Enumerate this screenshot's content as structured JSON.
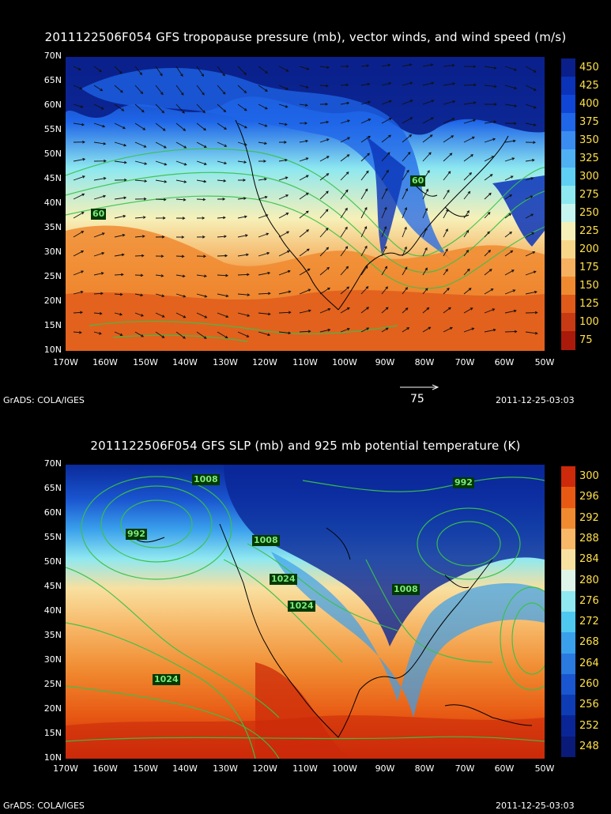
{
  "panel1": {
    "title": "2011122506F054 GFS tropopause pressure (mb), vector winds, and wind speed (m/s)",
    "colorbar": [
      "450",
      "425",
      "400",
      "375",
      "350",
      "325",
      "300",
      "275",
      "250",
      "225",
      "200",
      "175",
      "150",
      "125",
      "100",
      "75"
    ],
    "colorbar_colors": [
      "#0a1f8a",
      "#0a33b8",
      "#1046d6",
      "#1f66e8",
      "#3a8cf0",
      "#4fb0f4",
      "#5fcff4",
      "#8ee8f0",
      "#c6f5f0",
      "#f6f0b8",
      "#f7d68a",
      "#f5b060",
      "#f08a30",
      "#e05a1a",
      "#c83a14",
      "#aa1a0a"
    ],
    "ref_vector_label": "75",
    "contour_labels": [
      "60",
      "60"
    ],
    "footer_left": "GrADS: COLA/IGES",
    "footer_right": "2011-12-25-03:03"
  },
  "panel2": {
    "title": "2011122506F054 GFS SLP (mb) and 925 mb potential temperature (K)",
    "colorbar": [
      "300",
      "296",
      "292",
      "288",
      "284",
      "280",
      "276",
      "272",
      "268",
      "264",
      "260",
      "256",
      "252",
      "248"
    ],
    "colorbar_colors": [
      "#cc2a0a",
      "#e85a14",
      "#f08a30",
      "#f7b868",
      "#f8e0a0",
      "#dff4e8",
      "#90e8f0",
      "#4fc8f0",
      "#3aa0ec",
      "#2a7ae0",
      "#1a56d0",
      "#0e3cb4",
      "#0a2696",
      "#0a1a78"
    ],
    "contour_labels": [
      "1008",
      "992",
      "992",
      "1008",
      "1024",
      "1024",
      "1008",
      "1024"
    ],
    "footer_left": "GrADS: COLA/IGES",
    "footer_right": "2011-12-25-03:03"
  },
  "axes": {
    "lat_labels": [
      "70N",
      "65N",
      "60N",
      "55N",
      "50N",
      "45N",
      "40N",
      "35N",
      "30N",
      "25N",
      "20N",
      "15N",
      "10N"
    ],
    "lon_labels": [
      "170W",
      "160W",
      "150W",
      "140W",
      "130W",
      "120W",
      "110W",
      "100W",
      "90W",
      "80W",
      "70W",
      "60W",
      "50W"
    ]
  }
}
